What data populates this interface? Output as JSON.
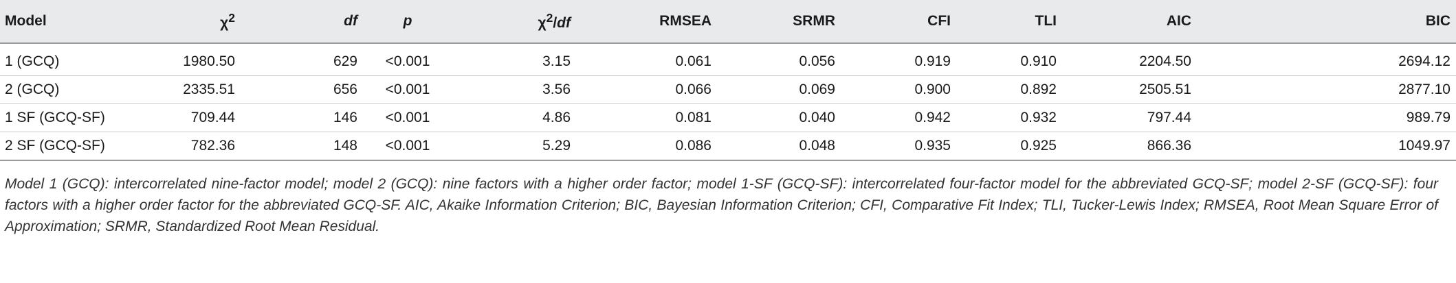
{
  "table": {
    "headers": {
      "model": "Model",
      "chi2": "χ",
      "chi2_sup": "2",
      "df": "df",
      "p": "p",
      "chi2df_chi": "χ",
      "chi2df_sup": "2",
      "chi2df_slash": "/",
      "chi2df_df": "df",
      "rmsea": "RMSEA",
      "srmr": "SRMR",
      "cfi": "CFI",
      "tli": "TLI",
      "aic": "AIC",
      "bic": "BIC"
    },
    "rows": [
      {
        "model": "1 (GCQ)",
        "chi2": "1980.50",
        "df": "629",
        "p": "<0.001",
        "chi2df": "3.15",
        "rmsea": "0.061",
        "srmr": "0.056",
        "cfi": "0.919",
        "tli": "0.910",
        "aic": "2204.50",
        "bic": "2694.12"
      },
      {
        "model": "2 (GCQ)",
        "chi2": "2335.51",
        "df": "656",
        "p": "<0.001",
        "chi2df": "3.56",
        "rmsea": "0.066",
        "srmr": "0.069",
        "cfi": "0.900",
        "tli": "0.892",
        "aic": "2505.51",
        "bic": "2877.10"
      },
      {
        "model": "1 SF (GCQ-SF)",
        "chi2": "709.44",
        "df": "146",
        "p": "<0.001",
        "chi2df": "4.86",
        "rmsea": "0.081",
        "srmr": "0.040",
        "cfi": "0.942",
        "tli": "0.932",
        "aic": "797.44",
        "bic": "989.79"
      },
      {
        "model": "2 SF (GCQ-SF)",
        "chi2": "782.36",
        "df": "148",
        "p": "<0.001",
        "chi2df": "5.29",
        "rmsea": "0.086",
        "srmr": "0.048",
        "cfi": "0.935",
        "tli": "0.925",
        "aic": "866.36",
        "bic": "1049.97"
      }
    ]
  },
  "note": "Model 1 (GCQ): intercorrelated nine-factor model; model 2 (GCQ): nine factors with a higher order factor; model 1-SF (GCQ-SF): intercorrelated four-factor model for the abbreviated GCQ-SF; model 2-SF (GCQ-SF): four factors with a higher order factor for the abbreviated GCQ-SF. AIC, Akaike Information Criterion; BIC, Bayesian Information Criterion; CFI, Comparative Fit Index; TLI, Tucker-Lewis Index; RMSEA, Root Mean Square Error of Approximation; SRMR, Standardized Root Mean Residual."
}
